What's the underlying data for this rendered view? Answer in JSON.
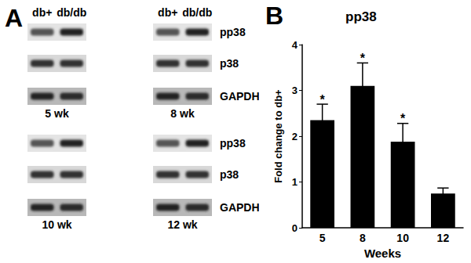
{
  "panel_labels": [
    "A",
    "B"
  ],
  "blots": {
    "lanes": [
      "db+",
      "db/db"
    ],
    "rows": [
      "pp38",
      "p38",
      "GAPDH"
    ],
    "timepoints": [
      "5 wk",
      "8 wk",
      "10 wk",
      "12 wk"
    ]
  },
  "chart_data": {
    "type": "bar",
    "title": "pp38",
    "x_label": "Weeks",
    "y_label": "Fold change to db+",
    "categories": [
      "5",
      "8",
      "10",
      "12"
    ],
    "values": [
      2.35,
      3.1,
      1.88,
      0.75
    ],
    "errors": [
      0.35,
      0.5,
      0.4,
      0.12
    ],
    "annotations": [
      "*",
      "*",
      "*",
      null
    ],
    "color": "#000000",
    "ylim": [
      0,
      4
    ],
    "yticks": [
      0,
      1,
      2,
      3,
      4
    ],
    "grid": false
  }
}
